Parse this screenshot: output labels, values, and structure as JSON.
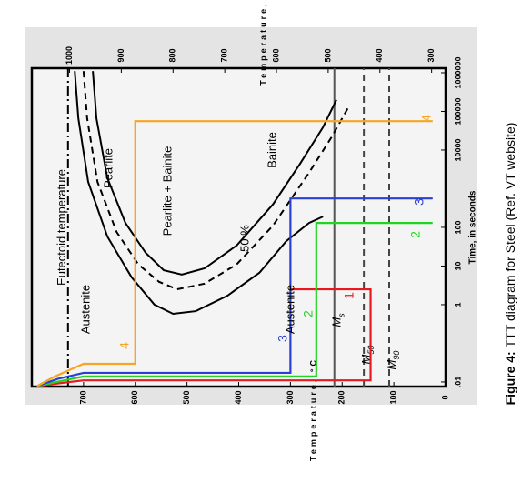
{
  "chart_data": {
    "type": "line",
    "x_scale": "log",
    "xlabel": "Time, in seconds",
    "ylabel": "Temperature, °C",
    "y2label": "Temperature, K",
    "figure_label": "Figure 4:",
    "caption": "TTT diagram for Steel (Ref. VT website)",
    "xlim": [
      0.0076,
      1310000
    ],
    "xticks": [
      {
        "value": 0.01,
        "label": ".01"
      },
      1,
      10,
      100,
      10000,
      100000,
      1000000
    ],
    "ylim": [
      0,
      800
    ],
    "yticks": [
      0,
      100,
      200,
      300,
      400,
      500,
      600,
      700
    ],
    "y2lim": [
      273,
      1073
    ],
    "y2ticks": [
      300,
      400,
      500,
      600,
      700,
      800,
      900,
      1000
    ],
    "hlines": [
      {
        "label": "Eutectoid temperature",
        "value": 730,
        "style": "dashdot",
        "color": "#000000"
      },
      {
        "label": "M",
        "sub": "s",
        "value": 215,
        "style": "solid",
        "color": "#555555"
      },
      {
        "label": "M",
        "sub": "50",
        "value": 158,
        "style": "dashed",
        "color": "#444444"
      },
      {
        "label": "M",
        "sub": "90",
        "value": 109,
        "style": "dashed",
        "color": "#444444"
      }
    ],
    "curves": [
      {
        "style": "solid",
        "color": "#000000",
        "x": [
          1100000,
          66000,
          1500,
          58,
          5.1,
          1,
          0.58,
          0.68,
          1.7,
          6.7,
          44,
          130,
          190
        ],
        "y": [
          717,
          710,
          691,
          654,
          607,
          563,
          527,
          483,
          422,
          360,
          308,
          264,
          237
        ]
      },
      {
        "style": "dashed",
        "color": "#000000",
        "x": [
          1100000,
          66000,
          1500,
          76,
          11,
          3.9,
          2.5,
          3.5,
          11,
          110,
          2600,
          22000,
          150000
        ],
        "y": [
          700,
          693,
          673,
          636,
          594,
          554,
          519,
          466,
          404,
          334,
          264,
          220,
          185
        ]
      },
      {
        "style": "solid",
        "color": "#000000",
        "x": [
          1100000,
          66000,
          1900,
          130,
          22,
          7.8,
          6,
          8.7,
          34,
          390,
          4500,
          39000,
          200000
        ],
        "y": [
          682,
          675,
          654,
          619,
          580,
          545,
          510,
          466,
          404,
          334,
          281,
          237,
          211
        ]
      }
    ],
    "series": [
      {
        "name": "1",
        "color": "#e8191e",
        "x": [
          0.0078,
          0.0095,
          0.011,
          0.011,
          2.5,
          2.5
        ],
        "values": [
          790,
          740,
          700,
          145,
          145,
          300
        ]
      },
      {
        "name": "2",
        "color": "#22d422",
        "x": [
          0.0078,
          0.0105,
          0.0139,
          0.0139,
          130,
          130
        ],
        "values": [
          790,
          745,
          700,
          250,
          250,
          25
        ]
      },
      {
        "name": "3",
        "color": "#2a3fd4",
        "x": [
          0.0078,
          0.012,
          0.0172,
          0.0172,
          560,
          560
        ],
        "values": [
          790,
          750,
          700,
          300,
          300,
          25
        ]
      },
      {
        "name": "4",
        "color": "#f5a623",
        "x": [
          0.0078,
          0.014,
          0.0295,
          0.0295,
          56000,
          56000
        ],
        "values": [
          790,
          755,
          700,
          600,
          600,
          25
        ]
      }
    ],
    "annotations": [
      "Austenite",
      "Pearlite",
      "Pearlite + Bainite",
      "Bainite",
      "50 %",
      "Austenite"
    ]
  }
}
